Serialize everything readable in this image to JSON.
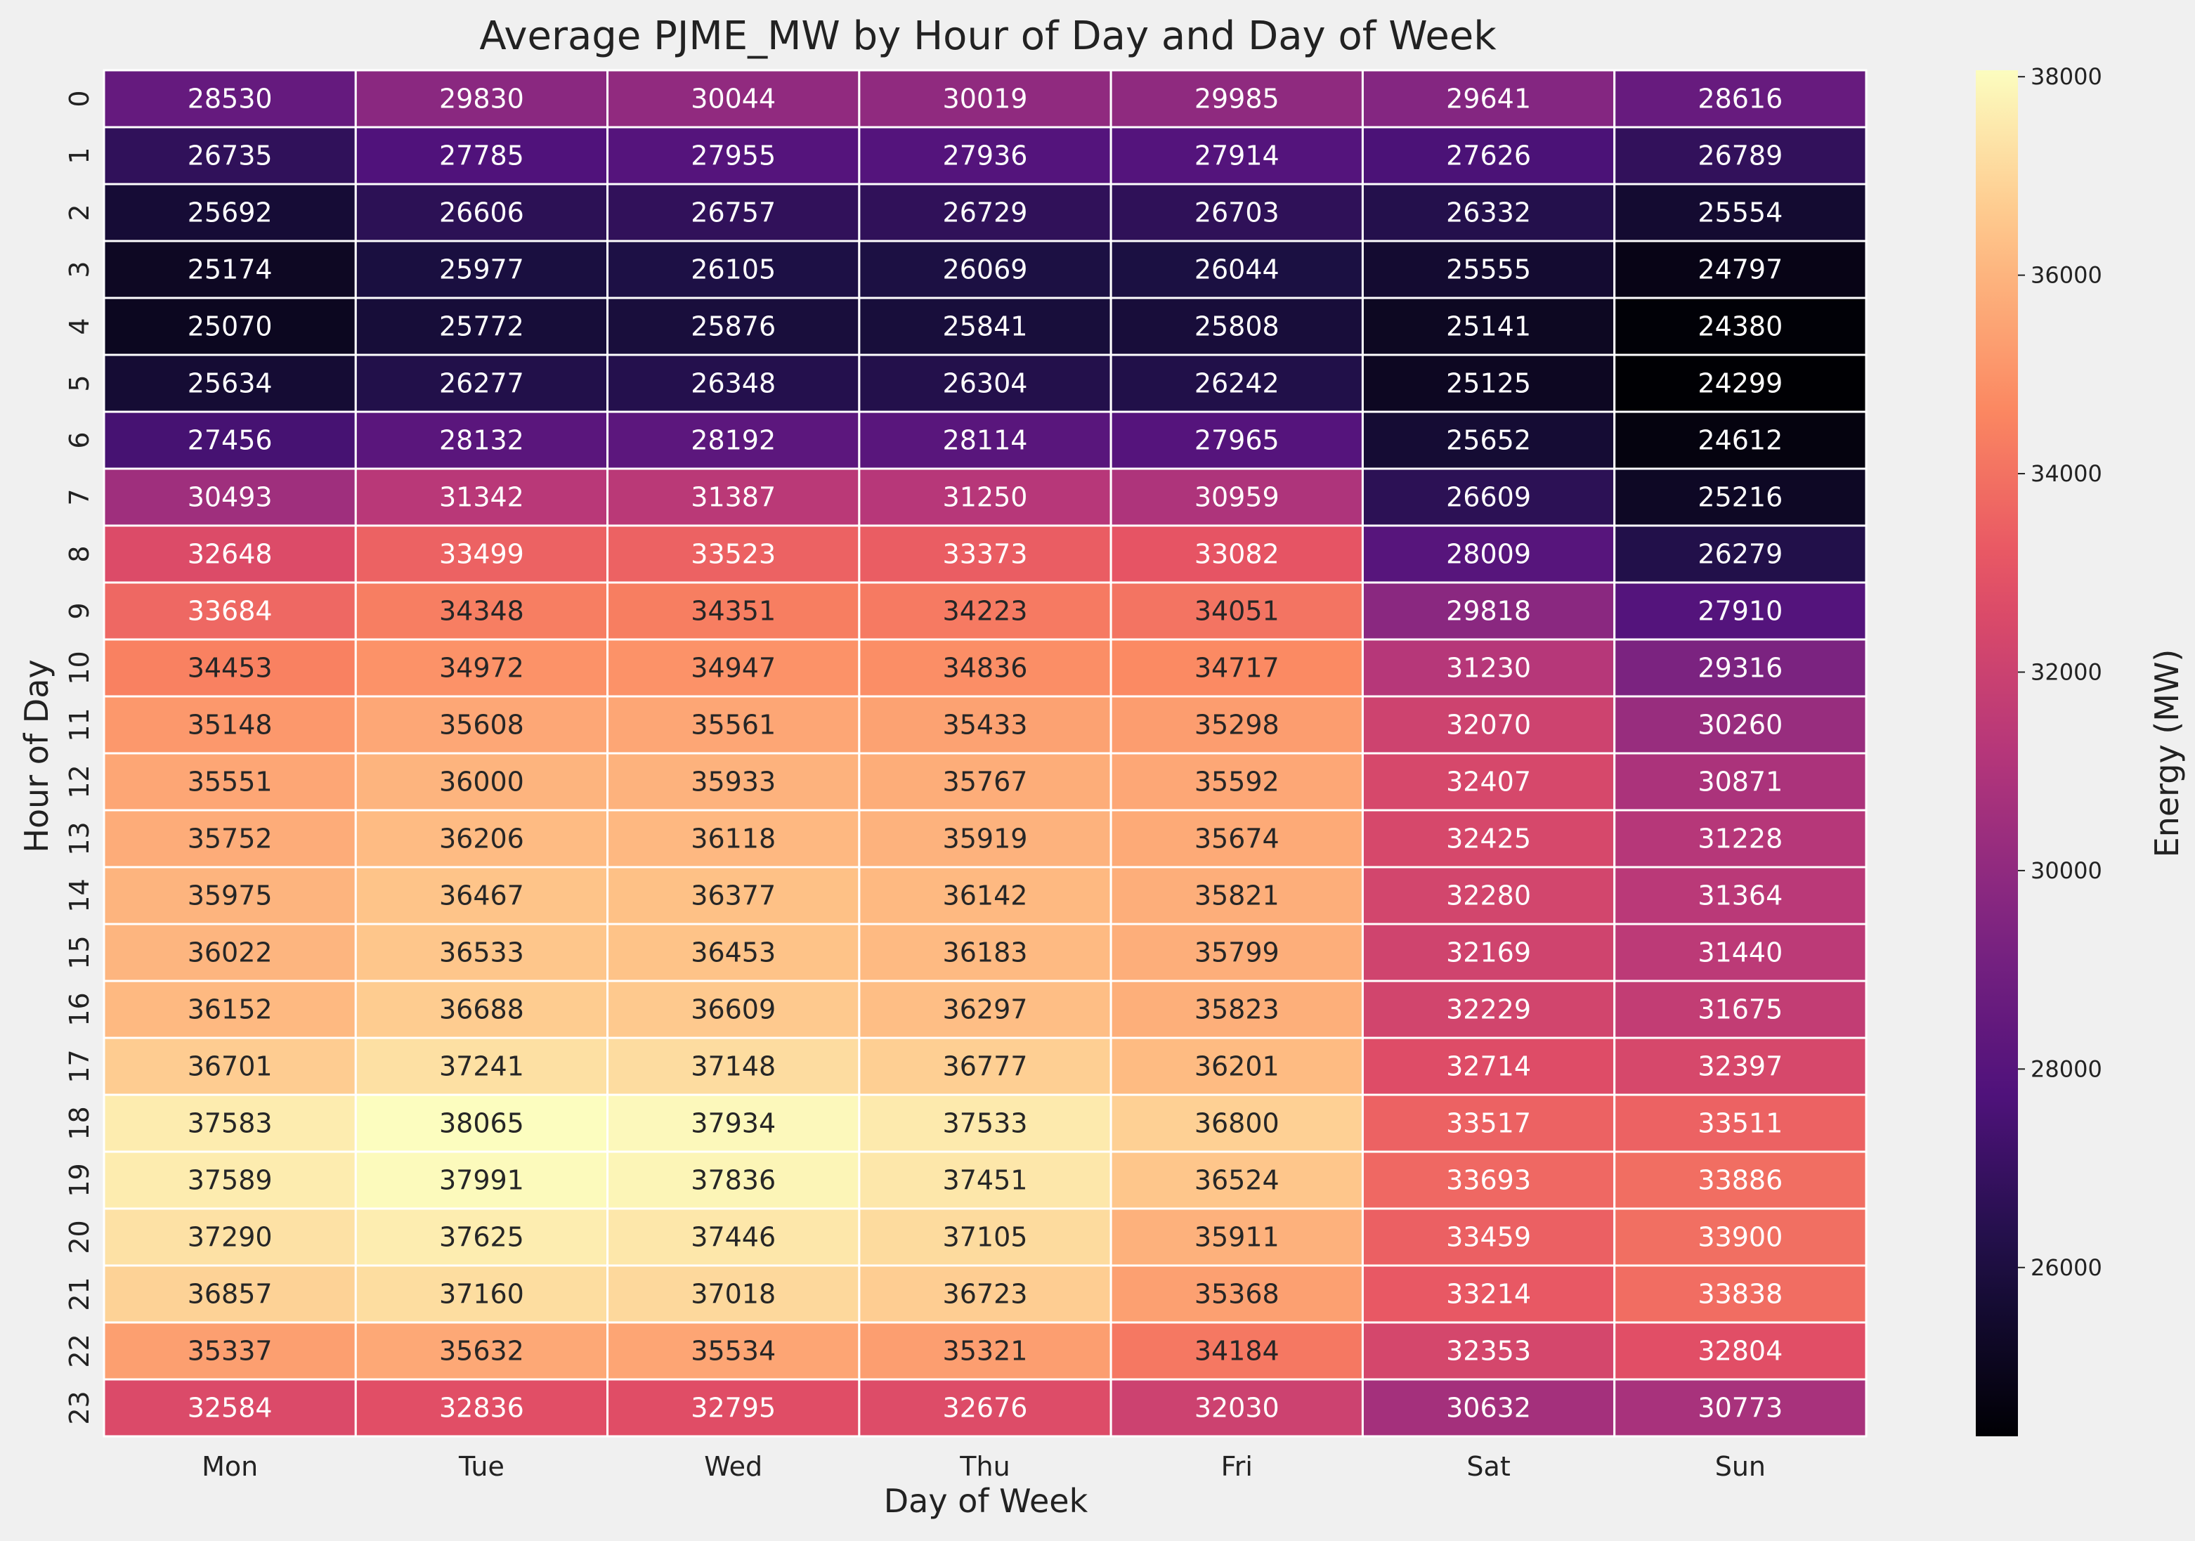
{
  "chart_data": {
    "type": "heatmap",
    "title": "Average PJME_MW by Hour of Day and Day of Week",
    "xlabel": "Day of Week",
    "ylabel": "Hour of Day",
    "x_categories": [
      "Mon",
      "Tue",
      "Wed",
      "Thu",
      "Fri",
      "Sat",
      "Sun"
    ],
    "y_categories": [
      "0",
      "1",
      "2",
      "3",
      "4",
      "5",
      "6",
      "7",
      "8",
      "9",
      "10",
      "11",
      "12",
      "13",
      "14",
      "15",
      "16",
      "17",
      "18",
      "19",
      "20",
      "21",
      "22",
      "23"
    ],
    "values": [
      [
        28530,
        29830,
        30044,
        30019,
        29985,
        29641,
        28616
      ],
      [
        26735,
        27785,
        27955,
        27936,
        27914,
        27626,
        26789
      ],
      [
        25692,
        26606,
        26757,
        26729,
        26703,
        26332,
        25554
      ],
      [
        25174,
        25977,
        26105,
        26069,
        26044,
        25555,
        24797
      ],
      [
        25070,
        25772,
        25876,
        25841,
        25808,
        25141,
        24380
      ],
      [
        25634,
        26277,
        26348,
        26304,
        26242,
        25125,
        24299
      ],
      [
        27456,
        28132,
        28192,
        28114,
        27965,
        25652,
        24612
      ],
      [
        30493,
        31342,
        31387,
        31250,
        30959,
        26609,
        25216
      ],
      [
        32648,
        33499,
        33523,
        33373,
        33082,
        28009,
        26279
      ],
      [
        33684,
        34348,
        34351,
        34223,
        34051,
        29818,
        27910
      ],
      [
        34453,
        34972,
        34947,
        34836,
        34717,
        31230,
        29316
      ],
      [
        35148,
        35608,
        35561,
        35433,
        35298,
        32070,
        30260
      ],
      [
        35551,
        36000,
        35933,
        35767,
        35592,
        32407,
        30871
      ],
      [
        35752,
        36206,
        36118,
        35919,
        35674,
        32425,
        31228
      ],
      [
        35975,
        36467,
        36377,
        36142,
        35821,
        32280,
        31364
      ],
      [
        36022,
        36533,
        36453,
        36183,
        35799,
        32169,
        31440
      ],
      [
        36152,
        36688,
        36609,
        36297,
        35823,
        32229,
        31675
      ],
      [
        36701,
        37241,
        37148,
        36777,
        36201,
        32714,
        32397
      ],
      [
        37583,
        38065,
        37934,
        37533,
        36800,
        33517,
        33511
      ],
      [
        37589,
        37991,
        37836,
        37451,
        36524,
        33693,
        33886
      ],
      [
        37290,
        37625,
        37446,
        37105,
        35911,
        33459,
        33900
      ],
      [
        36857,
        37160,
        37018,
        36723,
        35368,
        33214,
        33838
      ],
      [
        35337,
        35632,
        35534,
        35321,
        34184,
        32353,
        32804
      ],
      [
        32584,
        32836,
        32795,
        32676,
        32030,
        30632,
        30773
      ]
    ],
    "colormap": "magma",
    "colorbar": {
      "label": "Energy (MW)",
      "range": [
        24299,
        38065
      ],
      "ticks": [
        26000,
        28000,
        30000,
        32000,
        34000,
        36000,
        38000
      ]
    },
    "grid": false
  }
}
